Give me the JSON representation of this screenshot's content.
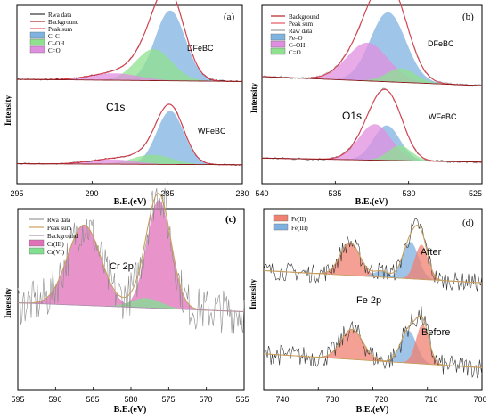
{
  "figure": {
    "panels": [
      {
        "id": "a",
        "panel_label": "(a)",
        "element_label": "C1s",
        "x_label": "B.E.(eV)",
        "y_label": "Intensity",
        "x_range": [
          295,
          280
        ],
        "x_ticks": [
          "295",
          "290",
          "285",
          "280"
        ],
        "legend": [
          {
            "label": "Rwa data",
            "kind": "line",
            "color": "#333333"
          },
          {
            "label": "Background",
            "kind": "line",
            "color": "#b22222"
          },
          {
            "label": "Peak sum",
            "kind": "line",
            "color": "#e8555f"
          },
          {
            "label": "C–C",
            "kind": "fill",
            "color": "#7fb3e0"
          },
          {
            "label": "C–OH",
            "kind": "fill",
            "color": "#8fe08f"
          },
          {
            "label": "C=O",
            "kind": "fill",
            "color": "#e08fe0"
          }
        ],
        "samples": [
          {
            "name": "DFeBC",
            "peaks": [
              {
                "center": 284.8,
                "height": 1.0,
                "width": 1.0,
                "color": "#7fb3e0"
              },
              {
                "center": 285.9,
                "height": 0.45,
                "width": 1.2,
                "color": "#8fe08f"
              },
              {
                "center": 288.5,
                "height": 0.1,
                "width": 1.6,
                "color": "#e08fe0"
              }
            ]
          },
          {
            "name": "WFeBC",
            "peaks": [
              {
                "center": 284.8,
                "height": 1.0,
                "width": 0.9,
                "color": "#7fb3e0"
              },
              {
                "center": 286.0,
                "height": 0.18,
                "width": 1.3,
                "color": "#8fe08f"
              },
              {
                "center": 288.7,
                "height": 0.09,
                "width": 1.5,
                "color": "#e08fe0"
              }
            ]
          }
        ]
      },
      {
        "id": "b",
        "panel_label": "(b)",
        "element_label": "O1s",
        "x_label": "B.E.(eV)",
        "y_label": "Intensity",
        "x_range": [
          540,
          525
        ],
        "x_ticks": [
          "540",
          "535",
          "530",
          "525"
        ],
        "legend": [
          {
            "label": "Background",
            "kind": "line",
            "color": "#b22222"
          },
          {
            "label": "Peak sum",
            "kind": "line",
            "color": "#e8555f"
          },
          {
            "label": "Raw data",
            "kind": "line",
            "color": "#999999"
          },
          {
            "label": "Fe–O",
            "kind": "fill",
            "color": "#7fb3e0"
          },
          {
            "label": "C–OH",
            "kind": "fill",
            "color": "#e08fe0"
          },
          {
            "label": "C=O",
            "kind": "fill",
            "color": "#8fe08f"
          }
        ],
        "samples": [
          {
            "name": "DFeBC",
            "peaks": [
              {
                "center": 531.4,
                "height": 1.0,
                "width": 1.2,
                "color": "#7fb3e0"
              },
              {
                "center": 532.8,
                "height": 0.55,
                "width": 1.4,
                "color": "#e08fe0"
              },
              {
                "center": 530.5,
                "height": 0.2,
                "width": 1.0,
                "color": "#8fe08f"
              }
            ]
          },
          {
            "name": "WFeBC",
            "peaks": [
              {
                "center": 531.5,
                "height": 0.7,
                "width": 0.9,
                "color": "#7fb3e0"
              },
              {
                "center": 532.3,
                "height": 0.72,
                "width": 1.1,
                "color": "#e08fe0"
              },
              {
                "center": 530.6,
                "height": 0.3,
                "width": 0.8,
                "color": "#8fe08f"
              }
            ]
          }
        ]
      },
      {
        "id": "c",
        "panel_label": "(c)",
        "element_label": "Cr 2p",
        "x_label": "B.E.(eV)",
        "y_label": "Intensity",
        "x_range": [
          595,
          565
        ],
        "x_ticks": [
          "595",
          "590",
          "585",
          "580",
          "575",
          "570",
          "565"
        ],
        "legend": [
          {
            "label": "Rwa data",
            "kind": "line",
            "color": "#999999"
          },
          {
            "label": "Peak sum",
            "kind": "line",
            "color": "#c8a060"
          },
          {
            "label": "Background",
            "kind": "line",
            "color": "#b08fb0"
          },
          {
            "label": "Cr(III)",
            "kind": "fill",
            "color": "#e070b8"
          },
          {
            "label": "Cr(VI)",
            "kind": "fill",
            "color": "#80e090"
          }
        ],
        "peaks": [
          {
            "center": 586.2,
            "height": 1.0,
            "width": 2.2,
            "color": "#e070b8"
          },
          {
            "center": 576.3,
            "height": 1.35,
            "width": 1.6,
            "color": "#e070b8"
          },
          {
            "center": 578.0,
            "height": 0.12,
            "width": 2.0,
            "color": "#80e090"
          }
        ]
      },
      {
        "id": "d",
        "panel_label": "(d)",
        "element_label": "Fe 2p",
        "x_label": "B.E.(eV)",
        "y_label": "Intensity",
        "x_range": [
          742,
          698
        ],
        "x_ticks": [
          "740",
          "730",
          "720",
          "710",
          "700"
        ],
        "legend": [
          {
            "label": "Fe(II)",
            "kind": "fill",
            "color": "#f08070"
          },
          {
            "label": "Fe(III)",
            "kind": "fill",
            "color": "#80b0e0"
          }
        ],
        "samples": [
          {
            "name": "After",
            "peaks": [
              {
                "center": 724.6,
                "height": 0.8,
                "width": 2.0,
                "color": "#f08070"
              },
              {
                "center": 712.4,
                "height": 0.9,
                "width": 1.6,
                "color": "#80b0e0"
              },
              {
                "center": 710.2,
                "height": 0.85,
                "width": 1.3,
                "color": "#f08070"
              },
              {
                "center": 718.3,
                "height": 0.15,
                "width": 1.5,
                "color": "#80b0e0"
              }
            ]
          },
          {
            "name": "Before",
            "peaks": [
              {
                "center": 724.2,
                "height": 0.65,
                "width": 2.2,
                "color": "#f08070"
              },
              {
                "center": 712.8,
                "height": 0.7,
                "width": 1.6,
                "color": "#80b0e0"
              },
              {
                "center": 710.0,
                "height": 0.85,
                "width": 1.3,
                "color": "#f08070"
              }
            ]
          }
        ]
      }
    ]
  },
  "chart_data": [
    {
      "type": "line",
      "panel": "(a)",
      "title": "C1s",
      "xlabel": "B.E.(eV)",
      "ylabel": "Intensity",
      "xlim": [
        295,
        280
      ],
      "legend_placement": "top-left",
      "series": [
        {
          "name": "DFeBC",
          "x": [
            295,
            290,
            288.5,
            286,
            285,
            284,
            282,
            280
          ],
          "values": [
            0.05,
            0.1,
            0.2,
            0.7,
            1.05,
            0.6,
            0.1,
            0.05
          ]
        },
        {
          "name": "WFeBC",
          "x": [
            295,
            290,
            288.5,
            286,
            285,
            284,
            282,
            280
          ],
          "values": [
            0.05,
            0.08,
            0.14,
            0.3,
            1.05,
            0.5,
            0.08,
            0.04
          ]
        }
      ],
      "components": [
        "C–C",
        "C–OH",
        "C=O"
      ],
      "peak_positions_eV": {
        "C–C": 284.8,
        "C–OH": 285.9,
        "C=O": 288.5
      }
    },
    {
      "type": "line",
      "panel": "(b)",
      "title": "O1s",
      "xlabel": "B.E.(eV)",
      "ylabel": "Intensity",
      "xlim": [
        540,
        525
      ],
      "legend_placement": "top-left",
      "series": [
        {
          "name": "DFeBC",
          "x": [
            540,
            535,
            533,
            531.5,
            530,
            528,
            525
          ],
          "values": [
            0.05,
            0.2,
            0.65,
            1.05,
            0.5,
            0.08,
            0.05
          ]
        },
        {
          "name": "WFeBC",
          "x": [
            540,
            535,
            533,
            531.5,
            530,
            528,
            525
          ],
          "values": [
            0.05,
            0.12,
            0.5,
            0.95,
            0.35,
            0.06,
            0.04
          ]
        }
      ],
      "components": [
        "Fe–O",
        "C–OH",
        "C=O"
      ],
      "peak_positions_eV": {
        "Fe–O": 531.4,
        "C–OH": 532.8,
        "C=O": 530.5
      }
    },
    {
      "type": "line",
      "panel": "(c)",
      "title": "Cr 2p",
      "xlabel": "B.E.(eV)",
      "ylabel": "Intensity",
      "xlim": [
        595,
        565
      ],
      "legend_placement": "top-left",
      "series": [
        {
          "name": "Peak sum",
          "x": [
            593,
            590,
            586,
            582,
            578,
            576,
            573,
            570,
            567
          ],
          "values": [
            0.15,
            0.35,
            1.1,
            0.45,
            0.6,
            1.45,
            0.3,
            0.12,
            0.1
          ]
        }
      ],
      "components": [
        "Cr(III)",
        "Cr(VI)"
      ],
      "peak_positions_eV": {
        "Cr(III) 2p1/2": 586.2,
        "Cr(III) 2p3/2": 576.3,
        "Cr(VI)": 578.0
      }
    },
    {
      "type": "line",
      "panel": "(d)",
      "title": "Fe 2p",
      "xlabel": "B.E.(eV)",
      "ylabel": "Intensity",
      "xlim": [
        742,
        698
      ],
      "legend_placement": "top-left",
      "series": [
        {
          "name": "After",
          "x": [
            740,
            730,
            724.6,
            718,
            712.4,
            710.2,
            705,
            702
          ],
          "values": [
            0.1,
            0.3,
            0.9,
            0.35,
            1.1,
            1.0,
            0.15,
            0.1
          ]
        },
        {
          "name": "Before",
          "x": [
            740,
            730,
            724.2,
            718,
            712.8,
            710,
            705,
            702
          ],
          "values": [
            0.1,
            0.25,
            0.75,
            0.3,
            0.85,
            1.0,
            0.12,
            0.1
          ]
        }
      ],
      "components": [
        "Fe(II)",
        "Fe(III)"
      ],
      "peak_positions_eV": {
        "Fe(II) 2p1/2": 724.6,
        "Fe(III) 2p3/2": 712.4,
        "Fe(II) 2p3/2": 710.2
      }
    }
  ]
}
